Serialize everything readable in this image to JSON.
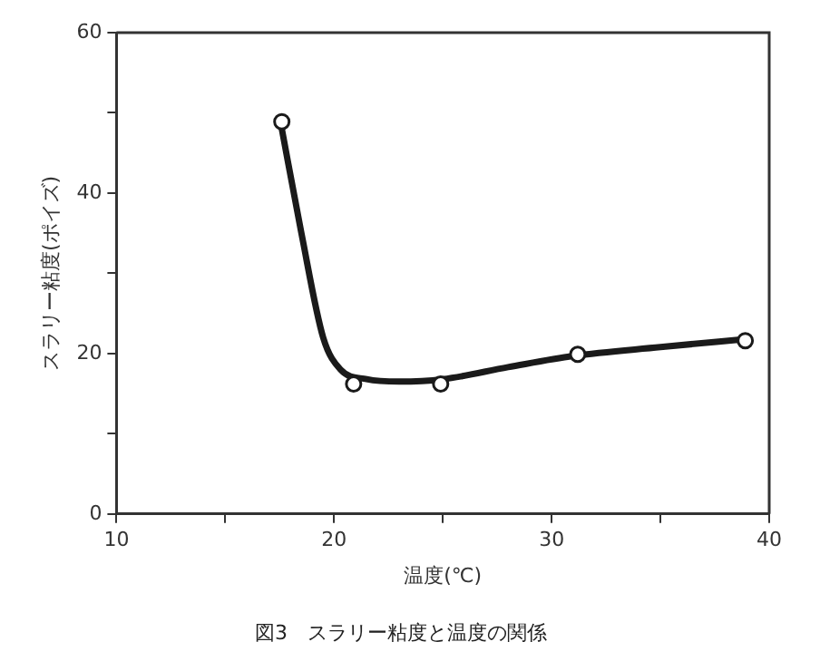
{
  "chart_data": {
    "type": "scatter",
    "title": "図3　スラリー粘度と温度の関係",
    "xlabel": "温度(℃)",
    "ylabel": "スラリー粘度(ポイズ)",
    "xlim": [
      10,
      40
    ],
    "xticks": [
      10,
      {
        "value": 15,
        "label": null
      },
      20,
      {
        "value": 25,
        "label": null
      },
      30,
      {
        "value": 35,
        "label": null
      },
      40
    ],
    "ylim": [
      0,
      60
    ],
    "yticks": [
      0,
      {
        "value": 10,
        "label": null
      },
      20,
      {
        "value": 30,
        "label": null
      },
      40,
      {
        "value": 50,
        "label": null
      },
      60
    ],
    "grid": false,
    "legend": false,
    "series": [
      {
        "type": "line",
        "color": "#1a1a1a",
        "marker": "none",
        "line_style": "solid",
        "x": [
          17.6,
          18.5,
          19.5,
          20.3,
          21.5,
          23,
          25,
          28,
          31,
          35,
          38.9
        ],
        "values": [
          48,
          35,
          22,
          18,
          16.8,
          16.5,
          16.8,
          18.3,
          19.7,
          20.8,
          21.8
        ]
      },
      {
        "type": "scatter",
        "color": "#1a1a1a",
        "marker": "circle",
        "x": [
          17.6,
          20.9,
          24.9,
          31.2,
          38.9
        ],
        "values": [
          48.9,
          16.2,
          16.2,
          19.9,
          21.6
        ]
      }
    ]
  }
}
